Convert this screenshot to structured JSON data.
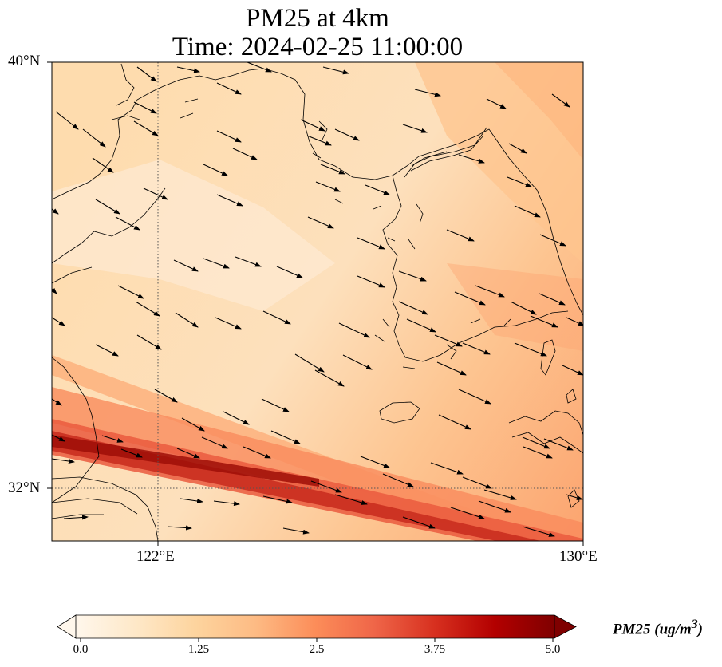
{
  "title": {
    "line1": "PM25 at 4km",
    "line2": "Time: 2024-02-25 11:00:00"
  },
  "map": {
    "extent": {
      "lon_min": 119.5,
      "lon_max": 130.0,
      "lat_min": 31.0,
      "lat_max": 40.0
    },
    "projection": "PlateCarree",
    "gridlines": {
      "lons": [
        122,
        130
      ],
      "lats": [
        32,
        40
      ],
      "style": "dotted"
    },
    "lat_ticks": [
      "40°N",
      "32°N"
    ],
    "lon_ticks": [
      "122°E",
      "130°E"
    ],
    "field": "PM25 concentration",
    "features": [
      "coastlines",
      "Korean peninsula",
      "Shandong peninsula",
      "Liaodong peninsula",
      "Jeju island"
    ],
    "wind_vectors": "arrows pointing east-southeast"
  },
  "colorbar": {
    "label": "PM25 (ug/m³)",
    "label_parts": {
      "base": "PM25 (ug/m",
      "sup": "3",
      "close": ")"
    },
    "ticks": [
      "0.0",
      "1.25",
      "2.5",
      "3.75",
      "5.0"
    ],
    "tick_values": [
      0,
      1.25,
      2.5,
      3.75,
      5.0
    ],
    "range": [
      0,
      5.0
    ],
    "extend": "both",
    "colormap": "OrRd",
    "colors": [
      "#fff7ec",
      "#fee8c8",
      "#fdd49e",
      "#fdbb84",
      "#fc8d59",
      "#ef6548",
      "#d7301f",
      "#b30000",
      "#7f0000"
    ]
  }
}
